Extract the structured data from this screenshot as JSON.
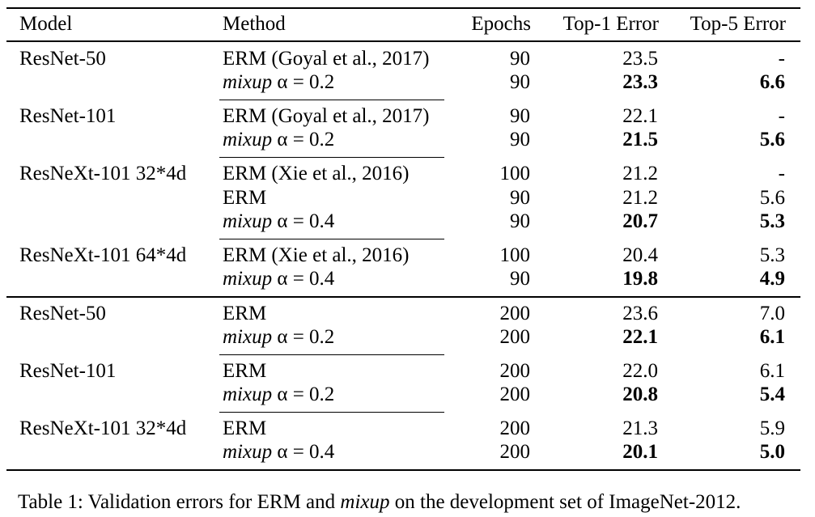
{
  "table": {
    "headers": {
      "model": "Model",
      "method": "Method",
      "epochs": "Epochs",
      "top1": "Top-1 Error",
      "top5": "Top-5 Error"
    },
    "rows": [
      {
        "model": "ResNet-50",
        "method_prefix": "ERM (Goyal et al., 2017)",
        "method_suffix": "",
        "epochs": "90",
        "top1": "23.5",
        "top5": "-",
        "bold": false
      },
      {
        "model": "",
        "method_prefix": "mixup",
        "method_suffix": " α = 0.2",
        "epochs": "90",
        "top1": "23.3",
        "top5": "6.6",
        "bold": true
      },
      {
        "model": "ResNet-101",
        "method_prefix": "ERM (Goyal et al., 2017)",
        "method_suffix": "",
        "epochs": "90",
        "top1": "22.1",
        "top5": "-",
        "bold": false
      },
      {
        "model": "",
        "method_prefix": "mixup",
        "method_suffix": " α = 0.2",
        "epochs": "90",
        "top1": "21.5",
        "top5": "5.6",
        "bold": true
      },
      {
        "model": "ResNeXt-101 32*4d",
        "method_prefix": "ERM (Xie et al., 2016)",
        "method_suffix": "",
        "epochs": "100",
        "top1": "21.2",
        "top5": "-",
        "bold": false
      },
      {
        "model": "",
        "method_prefix": "ERM",
        "method_suffix": "",
        "epochs": "90",
        "top1": "21.2",
        "top5": "5.6",
        "bold": false
      },
      {
        "model": "",
        "method_prefix": "mixup",
        "method_suffix": " α = 0.4",
        "epochs": "90",
        "top1": "20.7",
        "top5": "5.3",
        "bold": true
      },
      {
        "model": "ResNeXt-101 64*4d",
        "method_prefix": "ERM (Xie et al., 2016)",
        "method_suffix": "",
        "epochs": "100",
        "top1": "20.4",
        "top5": "5.3",
        "bold": false
      },
      {
        "model": "",
        "method_prefix": "mixup",
        "method_suffix": " α = 0.4",
        "epochs": "90",
        "top1": "19.8",
        "top5": "4.9",
        "bold": true
      },
      {
        "model": "ResNet-50",
        "method_prefix": "ERM",
        "method_suffix": "",
        "epochs": "200",
        "top1": "23.6",
        "top5": "7.0",
        "bold": false
      },
      {
        "model": "",
        "method_prefix": "mixup",
        "method_suffix": " α = 0.2",
        "epochs": "200",
        "top1": "22.1",
        "top5": "6.1",
        "bold": true
      },
      {
        "model": "ResNet-101",
        "method_prefix": "ERM",
        "method_suffix": "",
        "epochs": "200",
        "top1": "22.0",
        "top5": "6.1",
        "bold": false
      },
      {
        "model": "",
        "method_prefix": "mixup",
        "method_suffix": " α = 0.2",
        "epochs": "200",
        "top1": "20.8",
        "top5": "5.4",
        "bold": true
      },
      {
        "model": "ResNeXt-101 32*4d",
        "method_prefix": "ERM",
        "method_suffix": "",
        "epochs": "200",
        "top1": "21.3",
        "top5": "5.9",
        "bold": false
      },
      {
        "model": "",
        "method_prefix": "mixup",
        "method_suffix": " α = 0.4",
        "epochs": "200",
        "top1": "20.1",
        "top5": "5.0",
        "bold": true
      }
    ]
  },
  "caption": {
    "part1": "Table 1: Validation errors for ERM and ",
    "italic": "mixup",
    "part2": " on the development set of ImageNet-2012."
  }
}
